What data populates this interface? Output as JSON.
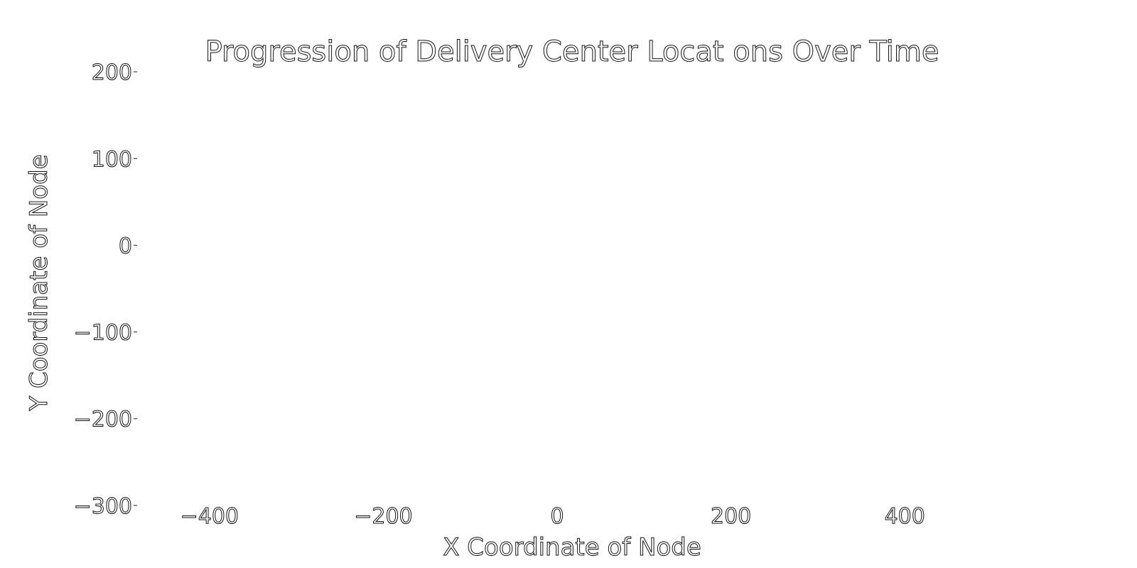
{
  "chart_data": {
    "type": "scatter",
    "title": "Progression of Delivery Center Locat ons Over Time",
    "xlabel": "X Coordinate of Node",
    "ylabel": "Y Coordinate of Node",
    "xlim": [
      -480,
      520
    ],
    "ylim": [
      -305,
      205
    ],
    "xticks": [
      {
        "value": -400,
        "label": "−400"
      },
      {
        "value": -200,
        "label": "−200"
      },
      {
        "value": 0,
        "label": "0"
      },
      {
        "value": 200,
        "label": "200"
      },
      {
        "value": 400,
        "label": "400"
      }
    ],
    "yticks": [
      {
        "value": 200,
        "label": "200"
      },
      {
        "value": 100,
        "label": "100"
      },
      {
        "value": 0,
        "label": "0"
      },
      {
        "value": -100,
        "label": "−100"
      },
      {
        "value": -200,
        "label": "−200"
      },
      {
        "value": -300,
        "label": "−300"
      }
    ],
    "series": [],
    "grid": false,
    "background": "#ffffff",
    "text_fill": "#ffffff",
    "text_stroke": "#111111"
  }
}
